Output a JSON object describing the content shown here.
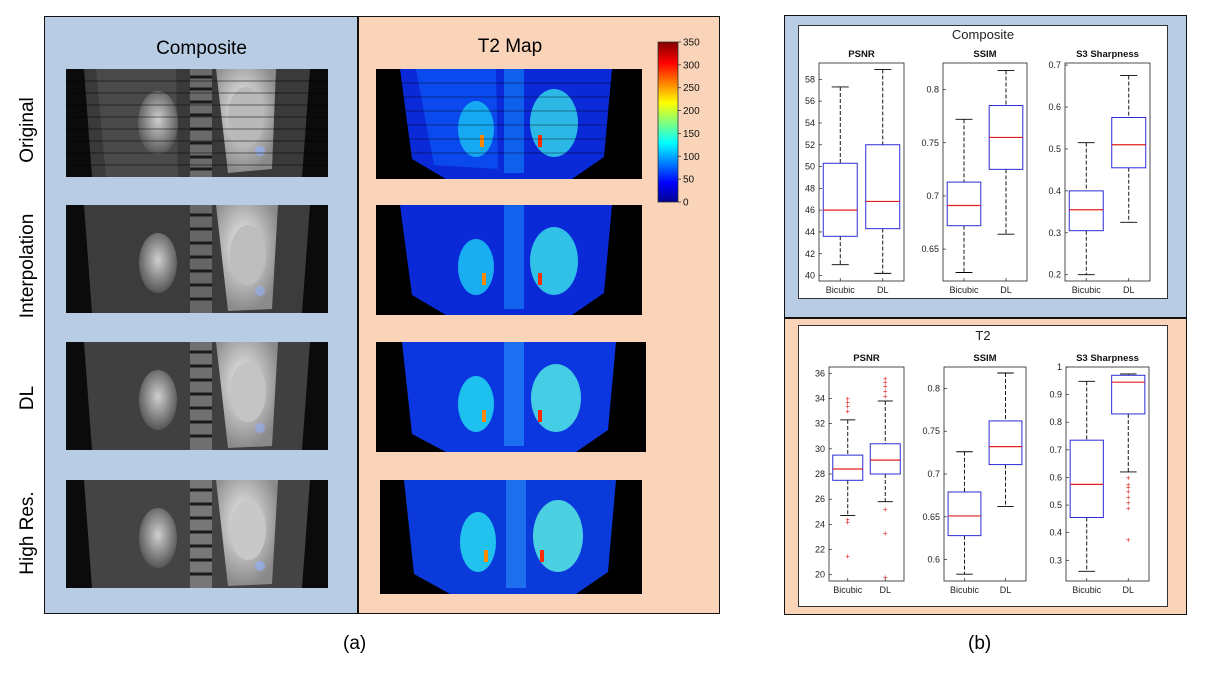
{
  "panel_a": {
    "col_titles": [
      "Composite",
      "T2 Map"
    ],
    "row_labels": [
      "Original",
      "Interpolation",
      "DL",
      "High Res."
    ],
    "colorbar": {
      "ticks": [
        "350",
        "300",
        "250",
        "200",
        "150",
        "100",
        "50",
        "0"
      ]
    },
    "caption": "(a)"
  },
  "panel_b": {
    "caption": "(b)"
  },
  "colors": {
    "box": "#2b2bd6",
    "median": "#e0201e",
    "outlier": "#e0201e",
    "composite_bg": "#b8cce4",
    "t2_bg": "#f9d4b8"
  },
  "chart_data": [
    {
      "type": "box",
      "group": "Composite",
      "title": "PSNR",
      "categories": [
        "Bicubic",
        "DL"
      ],
      "ylim": [
        39.5,
        59.5
      ],
      "yticks": [
        40,
        42,
        44,
        46,
        48,
        50,
        52,
        54,
        56,
        58
      ],
      "boxes": [
        {
          "min": 41.0,
          "q1": 43.6,
          "median": 46.0,
          "q3": 50.3,
          "max": 57.3,
          "outliers": []
        },
        {
          "min": 40.2,
          "q1": 44.3,
          "median": 46.8,
          "q3": 52.0,
          "max": 58.9,
          "outliers": []
        }
      ]
    },
    {
      "type": "box",
      "group": "Composite",
      "title": "SSIM",
      "categories": [
        "Bicubic",
        "DL"
      ],
      "ylim": [
        0.62,
        0.825
      ],
      "yticks": [
        0.65,
        0.7,
        0.75,
        0.8
      ],
      "boxes": [
        {
          "min": 0.628,
          "q1": 0.672,
          "median": 0.691,
          "q3": 0.713,
          "max": 0.772,
          "outliers": []
        },
        {
          "min": 0.664,
          "q1": 0.725,
          "median": 0.755,
          "q3": 0.785,
          "max": 0.818,
          "outliers": []
        }
      ]
    },
    {
      "type": "box",
      "group": "Composite",
      "title": "S3 Sharpness",
      "categories": [
        "Bicubic",
        "DL"
      ],
      "ylim": [
        0.185,
        0.705
      ],
      "yticks": [
        0.2,
        0.3,
        0.4,
        0.5,
        0.6,
        0.7
      ],
      "boxes": [
        {
          "min": 0.2,
          "q1": 0.305,
          "median": 0.355,
          "q3": 0.4,
          "max": 0.515,
          "outliers": []
        },
        {
          "min": 0.325,
          "q1": 0.455,
          "median": 0.51,
          "q3": 0.575,
          "max": 0.675,
          "outliers": []
        }
      ]
    },
    {
      "type": "box",
      "group": "T2",
      "title": "PSNR",
      "categories": [
        "Bicubic",
        "DL"
      ],
      "ylim": [
        19.5,
        36.5
      ],
      "yticks": [
        20,
        22,
        24,
        26,
        28,
        30,
        32,
        34,
        36
      ],
      "boxes": [
        {
          "min": 24.7,
          "q1": 27.5,
          "median": 28.4,
          "q3": 29.5,
          "max": 32.3,
          "outliers": [
            21.5,
            24.2,
            24.4,
            33.0,
            33.4,
            33.7,
            34.0
          ]
        },
        {
          "min": 25.8,
          "q1": 28.0,
          "median": 29.1,
          "q3": 30.4,
          "max": 33.8,
          "outliers": [
            19.8,
            23.3,
            25.2,
            34.2,
            34.6,
            35.0,
            35.3,
            35.6
          ]
        }
      ]
    },
    {
      "type": "box",
      "group": "T2",
      "title": "SSIM",
      "categories": [
        "Bicubic",
        "DL"
      ],
      "ylim": [
        0.575,
        0.825
      ],
      "yticks": [
        0.6,
        0.65,
        0.7,
        0.75,
        0.8
      ],
      "boxes": [
        {
          "min": 0.583,
          "q1": 0.628,
          "median": 0.651,
          "q3": 0.679,
          "max": 0.726,
          "outliers": []
        },
        {
          "min": 0.662,
          "q1": 0.711,
          "median": 0.732,
          "q3": 0.762,
          "max": 0.818,
          "outliers": []
        }
      ]
    },
    {
      "type": "box",
      "group": "T2",
      "title": "S3 Sharpness",
      "categories": [
        "Bicubic",
        "DL"
      ],
      "ylim": [
        0.225,
        1.0
      ],
      "yticks": [
        0.3,
        0.4,
        0.5,
        0.6,
        0.7,
        0.8,
        0.9,
        1
      ],
      "boxes": [
        {
          "min": 0.26,
          "q1": 0.455,
          "median": 0.575,
          "q3": 0.735,
          "max": 0.948,
          "outliers": []
        },
        {
          "min": 0.62,
          "q1": 0.83,
          "median": 0.945,
          "q3": 0.97,
          "max": 0.975,
          "outliers": [
            0.375,
            0.49,
            0.51,
            0.53,
            0.55,
            0.565,
            0.575,
            0.6
          ]
        }
      ]
    }
  ]
}
